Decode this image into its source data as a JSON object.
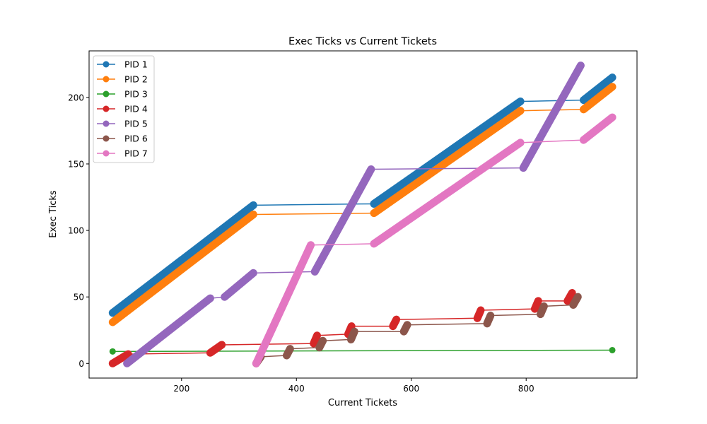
{
  "chart_data": {
    "type": "line",
    "title": "Exec Ticks vs Current Tickets",
    "xlabel": "Current Tickets",
    "ylabel": "Exec Ticks",
    "xlim": [
      39,
      993
    ],
    "ylim": [
      -11,
      235
    ],
    "xticks": [
      200,
      400,
      600,
      800
    ],
    "yticks": [
      0,
      50,
      100,
      150,
      200
    ],
    "grid": false,
    "legend_position": "top-left",
    "series": [
      {
        "name": "PID 1",
        "color": "#1f77b4",
        "segments": [
          [
            [
              80,
              38
            ],
            [
              325,
              119
            ]
          ],
          [
            [
              535,
              120
            ],
            [
              790,
              197
            ]
          ],
          [
            [
              900,
              198
            ],
            [
              950,
              215
            ]
          ]
        ],
        "points": [
          [
            325,
            119
          ],
          [
            535,
            120
          ],
          [
            790,
            197
          ],
          [
            900,
            198
          ]
        ]
      },
      {
        "name": "PID 2",
        "color": "#ff7f0e",
        "segments": [
          [
            [
              80,
              31
            ],
            [
              325,
              112
            ]
          ],
          [
            [
              535,
              113
            ],
            [
              790,
              190
            ]
          ],
          [
            [
              900,
              191
            ],
            [
              950,
              208
            ]
          ]
        ],
        "points": [
          [
            325,
            112
          ],
          [
            535,
            113
          ],
          [
            790,
            190
          ],
          [
            900,
            191
          ]
        ]
      },
      {
        "name": "PID 3",
        "color": "#2ca02c",
        "segments": [],
        "points": [
          [
            80,
            9
          ],
          [
            950,
            10
          ]
        ]
      },
      {
        "name": "PID 4",
        "color": "#d62728",
        "segments": [
          [
            [
              80,
              0
            ],
            [
              107,
              7
            ]
          ],
          [
            [
              250,
              8
            ],
            [
              270,
              14
            ]
          ],
          [
            [
              430,
              15
            ],
            [
              436,
              21
            ]
          ],
          [
            [
              490,
              22
            ],
            [
              496,
              28
            ]
          ],
          [
            [
              568,
              28
            ],
            [
              574,
              33
            ]
          ],
          [
            [
              715,
              34
            ],
            [
              721,
              40
            ]
          ],
          [
            [
              815,
              41
            ],
            [
              821,
              47
            ]
          ],
          [
            [
              872,
              47
            ],
            [
              880,
              53
            ]
          ]
        ],
        "points": [
          [
            107,
            7
          ],
          [
            250,
            8
          ],
          [
            270,
            14
          ],
          [
            430,
            15
          ],
          [
            436,
            21
          ],
          [
            490,
            22
          ],
          [
            496,
            28
          ],
          [
            568,
            28
          ],
          [
            574,
            33
          ],
          [
            715,
            34
          ],
          [
            721,
            40
          ],
          [
            815,
            41
          ],
          [
            821,
            47
          ],
          [
            872,
            47
          ]
        ]
      },
      {
        "name": "PID 5",
        "color": "#9467bd",
        "segments": [
          [
            [
              105,
              0
            ],
            [
              250,
              49
            ]
          ],
          [
            [
              275,
              50
            ],
            [
              325,
              68
            ]
          ],
          [
            [
              432,
              69
            ],
            [
              530,
              146
            ]
          ],
          [
            [
              795,
              147
            ],
            [
              895,
              224
            ]
          ]
        ],
        "points": [
          [
            250,
            49
          ],
          [
            275,
            50
          ],
          [
            325,
            68
          ],
          [
            432,
            69
          ],
          [
            530,
            146
          ],
          [
            795,
            147
          ]
        ]
      },
      {
        "name": "PID 6",
        "color": "#8c564b",
        "segments": [
          [
            [
              330,
              0
            ],
            [
              338,
              5
            ]
          ],
          [
            [
              383,
              6
            ],
            [
              389,
              11
            ]
          ],
          [
            [
              440,
              12
            ],
            [
              446,
              17
            ]
          ],
          [
            [
              495,
              18
            ],
            [
              501,
              24
            ]
          ],
          [
            [
              587,
              24
            ],
            [
              593,
              29
            ]
          ],
          [
            [
              732,
              30
            ],
            [
              738,
              36
            ]
          ],
          [
            [
              825,
              37
            ],
            [
              831,
              43
            ]
          ],
          [
            [
              882,
              44
            ],
            [
              890,
              50
            ]
          ]
        ],
        "points": [
          [
            338,
            5
          ],
          [
            383,
            6
          ],
          [
            389,
            11
          ],
          [
            440,
            12
          ],
          [
            446,
            17
          ],
          [
            495,
            18
          ],
          [
            501,
            24
          ],
          [
            587,
            24
          ],
          [
            593,
            29
          ],
          [
            732,
            30
          ],
          [
            738,
            36
          ],
          [
            825,
            37
          ],
          [
            831,
            43
          ],
          [
            882,
            44
          ]
        ]
      },
      {
        "name": "PID 7",
        "color": "#e377c2",
        "segments": [
          [
            [
              330,
              0
            ],
            [
              425,
              89
            ]
          ],
          [
            [
              535,
              90
            ],
            [
              790,
              166
            ]
          ],
          [
            [
              900,
              168
            ],
            [
              950,
              185
            ]
          ]
        ],
        "points": [
          [
            425,
            89
          ],
          [
            535,
            90
          ],
          [
            790,
            166
          ],
          [
            900,
            168
          ]
        ]
      }
    ]
  }
}
